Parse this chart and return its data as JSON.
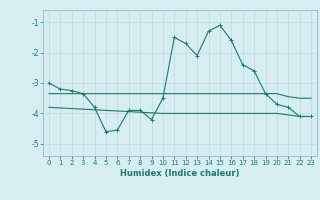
{
  "x": [
    0,
    1,
    2,
    3,
    4,
    5,
    6,
    7,
    8,
    9,
    10,
    11,
    12,
    13,
    14,
    15,
    16,
    17,
    18,
    19,
    20,
    21,
    22,
    23
  ],
  "y_main": [
    -3.0,
    -3.2,
    -3.25,
    -3.35,
    -3.8,
    -4.6,
    -4.55,
    -3.9,
    -3.9,
    -4.2,
    -3.5,
    -1.5,
    -1.7,
    -2.1,
    -1.3,
    -1.1,
    -1.6,
    -2.4,
    -2.6,
    -3.35,
    -3.7,
    -3.8,
    -4.1,
    -4.1
  ],
  "y_upper": [
    -3.35,
    -3.35,
    -3.35,
    -3.35,
    -3.35,
    -3.35,
    -3.35,
    -3.35,
    -3.35,
    -3.35,
    -3.35,
    -3.35,
    -3.35,
    -3.35,
    -3.35,
    -3.35,
    -3.35,
    -3.35,
    -3.35,
    -3.35,
    -3.35,
    -3.45,
    -3.5,
    -3.5
  ],
  "y_lower": [
    -3.8,
    -3.82,
    -3.84,
    -3.86,
    -3.88,
    -3.9,
    -3.92,
    -3.94,
    -3.96,
    -3.98,
    -4.0,
    -4.0,
    -4.0,
    -4.0,
    -4.0,
    -4.0,
    -4.0,
    -4.0,
    -4.0,
    -4.0,
    -4.0,
    -4.05,
    -4.1,
    -4.1
  ],
  "color": "#1a7a6e",
  "bg_color": "#d6eef0",
  "grid_color": "#b8d8dc",
  "xlabel": "Humidex (Indice chaleur)",
  "ylim": [
    -5.4,
    -0.6
  ],
  "xlim": [
    -0.5,
    23.5
  ],
  "yticks": [
    -5,
    -4,
    -3,
    -2,
    -1
  ],
  "xticks": [
    0,
    1,
    2,
    3,
    4,
    5,
    6,
    7,
    8,
    9,
    10,
    11,
    12,
    13,
    14,
    15,
    16,
    17,
    18,
    19,
    20,
    21,
    22,
    23
  ]
}
